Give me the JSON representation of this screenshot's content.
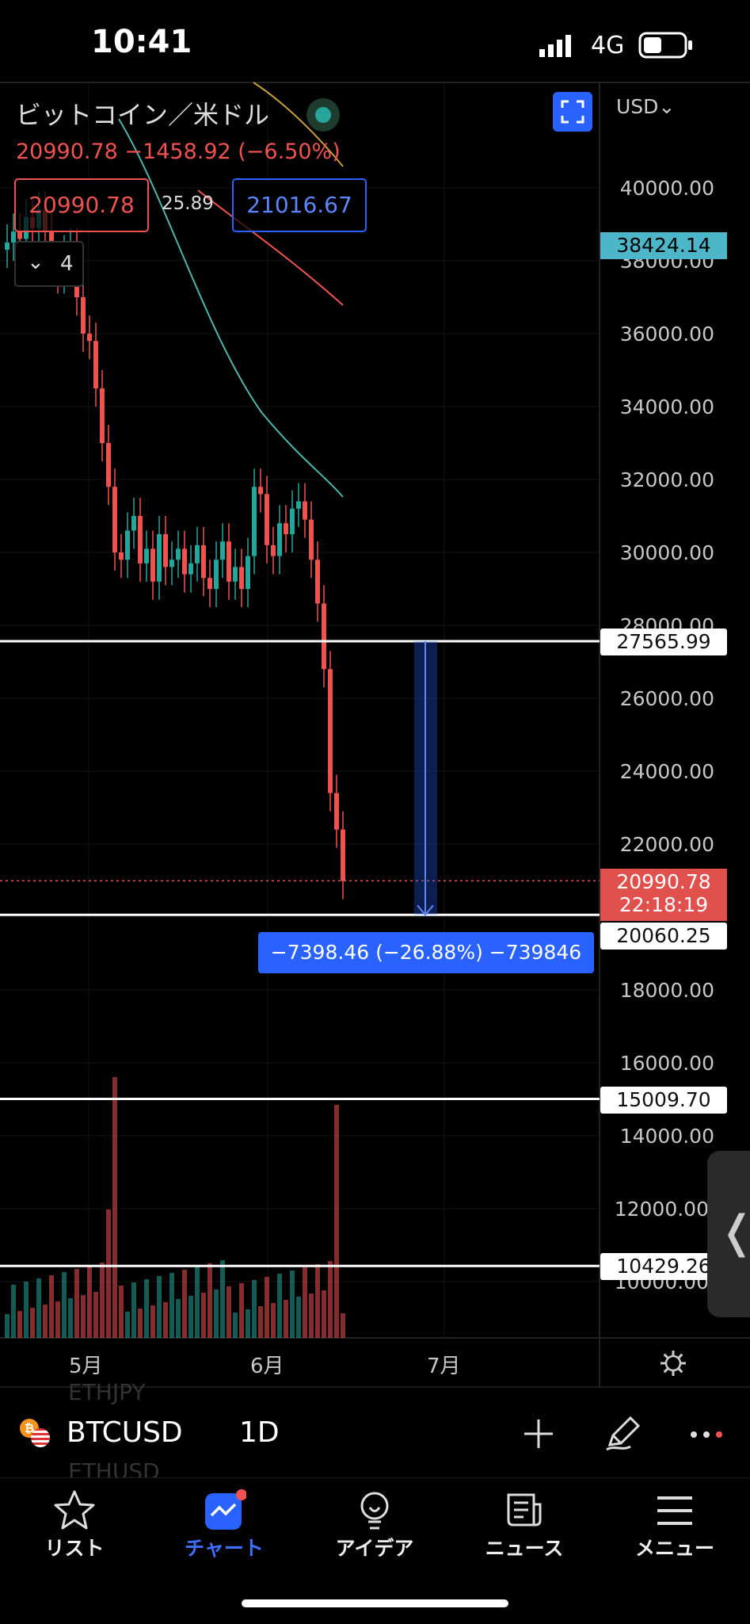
{
  "status_bar": {
    "time": "10:41",
    "network": "4G"
  },
  "chart": {
    "symbol_name": "ビットコイン／米ドル",
    "currency": "USD",
    "ohlc_line": "20990.78 −1458.92 (−6.50%)",
    "sell_price": "20990.78",
    "spread": "25.89",
    "buy_price": "21016.67",
    "indicator_count": "4",
    "last_price": "20990.78",
    "countdown": "22:18:19",
    "ma_price": "38424.14",
    "measure_label": "−7398.46 (−26.88%) −739846",
    "axis_labels": [
      "40000.00",
      "38000.00",
      "36000.00",
      "34000.00",
      "32000.00",
      "30000.00",
      "28000.00",
      "26000.00",
      "24000.00",
      "22000.00",
      "18000.00",
      "16000.00",
      "14000.00",
      "12000.00",
      "10000.00"
    ],
    "horizontal_lines": [
      "27565.99",
      "20060.25",
      "15009.70",
      "10429.26"
    ],
    "months": [
      "5月",
      "6月",
      "7月"
    ],
    "colors": {
      "up": "#26a69a",
      "down": "#ef5350",
      "accent": "#2962ff",
      "ma_teal": "#4db6ac"
    }
  },
  "toolbar": {
    "symbol": "BTCUSD",
    "interval": "1D",
    "ghost_prev": "ETHJPY",
    "ghost_next": "ETHUSD"
  },
  "tabs": [
    {
      "label": "リスト",
      "icon": "star-icon",
      "active": false
    },
    {
      "label": "チャート",
      "icon": "chart-icon",
      "active": true
    },
    {
      "label": "アイデア",
      "icon": "lightbulb-icon",
      "active": false
    },
    {
      "label": "ニュース",
      "icon": "news-icon",
      "active": false
    },
    {
      "label": "メニュー",
      "icon": "menu-icon",
      "active": false
    }
  ]
}
